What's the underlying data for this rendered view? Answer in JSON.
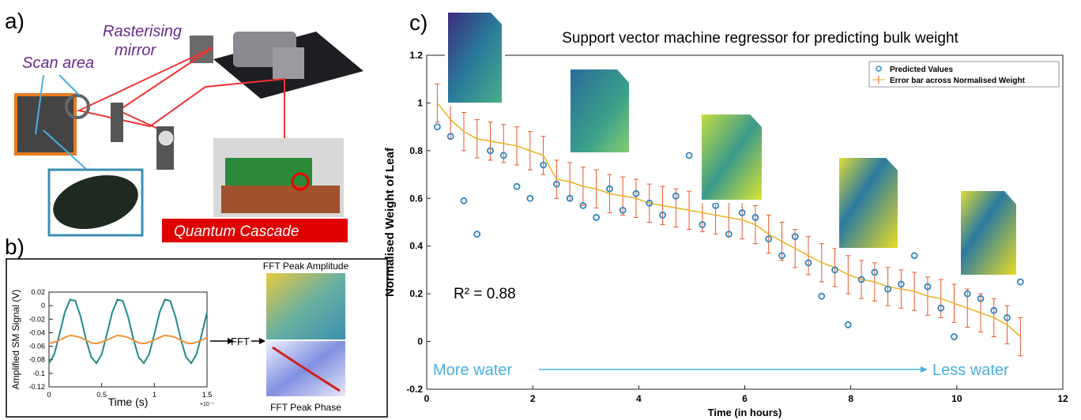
{
  "panel_a": {
    "label": "a)",
    "mirror_label": [
      "Rasterising",
      "mirror"
    ],
    "scan_label": "Scan area",
    "laser_label": "Quantum Cascade"
  },
  "panel_b": {
    "label": "b)",
    "fft_label": "FFT",
    "amplitude_label": "FFT Peak Amplitude",
    "phase_label": "FFT Peak Phase"
  },
  "panel_c": {
    "label": "c)"
  },
  "chart_data": [
    {
      "type": "line",
      "x_label": "Time (s)",
      "y_label": "Amplified SM Signal (V)",
      "x_exponent": "×10⁻⁷",
      "x": [
        0,
        0.05,
        0.1,
        0.15,
        0.2,
        0.25,
        0.3,
        0.35,
        0.4,
        0.45,
        0.5,
        0.55,
        0.6,
        0.65,
        0.7,
        0.75,
        0.8,
        0.85,
        0.9,
        0.95,
        1,
        1.05,
        1.1,
        1.15,
        1.2,
        1.25,
        1.3,
        1.35,
        1.4,
        1.45,
        1.5
      ],
      "series": [
        {
          "color": "#1f8a8a",
          "values": [
            -0.085,
            -0.072,
            -0.042,
            -0.01,
            0.009,
            0.007,
            -0.016,
            -0.049,
            -0.076,
            -0.085,
            -0.072,
            -0.042,
            -0.01,
            0.009,
            0.007,
            -0.016,
            -0.049,
            -0.076,
            -0.085,
            -0.072,
            -0.042,
            -0.01,
            0.009,
            0.007,
            -0.016,
            -0.049,
            -0.076,
            -0.085,
            -0.072,
            -0.042,
            -0.01
          ]
        },
        {
          "color": "#f0913a",
          "values": [
            -0.056,
            -0.054,
            -0.051,
            -0.047,
            -0.044,
            -0.045,
            -0.047,
            -0.051,
            -0.055,
            -0.056,
            -0.054,
            -0.051,
            -0.047,
            -0.044,
            -0.045,
            -0.047,
            -0.051,
            -0.055,
            -0.056,
            -0.054,
            -0.051,
            -0.047,
            -0.044,
            -0.045,
            -0.047,
            -0.051,
            -0.055,
            -0.056,
            -0.054,
            -0.051,
            -0.047
          ]
        }
      ],
      "xlim": [
        0,
        1.5
      ],
      "ylim": [
        -0.12,
        0.02
      ],
      "xticks": [
        0,
        0.5,
        1,
        1.5
      ],
      "yticks": [
        -0.12,
        -0.1,
        -0.08,
        -0.06,
        -0.04,
        -0.02,
        0,
        0.02
      ],
      "grid": false
    },
    {
      "type": "scatter",
      "title": "Support vector machine regressor for predicting bulk weight",
      "x_label": "Time (in hours)",
      "y_label": "Normalised Weight of Leaf",
      "annotation": "R² = 0.88",
      "arrow_labels": [
        "More water",
        "Less water"
      ],
      "x": [
        0.2,
        0.45,
        0.7,
        0.95,
        1.2,
        1.45,
        1.7,
        1.95,
        2.2,
        2.45,
        2.7,
        2.95,
        3.2,
        3.45,
        3.7,
        3.95,
        4.2,
        4.45,
        4.7,
        4.95,
        5.2,
        5.45,
        5.7,
        5.95,
        6.2,
        6.45,
        6.7,
        6.95,
        7.2,
        7.45,
        7.7,
        7.95,
        8.2,
        8.45,
        8.7,
        8.95,
        9.2,
        9.45,
        9.7,
        9.95,
        10.2,
        10.45,
        10.7,
        10.95,
        11.2
      ],
      "series": [
        {
          "name": "Predicted Values",
          "color": "#2e86c1",
          "values": [
            0.9,
            0.86,
            0.59,
            0.45,
            0.8,
            0.78,
            0.65,
            0.6,
            0.74,
            0.66,
            0.6,
            0.57,
            0.52,
            0.64,
            0.55,
            0.62,
            0.58,
            0.53,
            0.61,
            0.78,
            0.49,
            0.57,
            0.45,
            0.54,
            0.52,
            0.43,
            0.36,
            0.44,
            0.33,
            0.19,
            0.3,
            0.07,
            0.26,
            0.29,
            0.22,
            0.24,
            0.36,
            0.23,
            0.14,
            0.02,
            0.2,
            0.18,
            0.13,
            0.1,
            0.25
          ]
        },
        {
          "name": "Error bar across Normalised Weight",
          "color": "#e8562a",
          "line_color": "#edb120",
          "error": 0.08,
          "values": [
            1.0,
            0.93,
            0.88,
            0.85,
            0.84,
            0.83,
            0.82,
            0.8,
            0.78,
            0.68,
            0.67,
            0.65,
            0.64,
            0.62,
            0.61,
            0.6,
            0.58,
            0.57,
            0.56,
            0.55,
            0.54,
            0.53,
            0.52,
            0.51,
            0.49,
            0.45,
            0.42,
            0.39,
            0.36,
            0.33,
            0.31,
            0.28,
            0.26,
            0.25,
            0.23,
            0.22,
            0.21,
            0.19,
            0.18,
            0.16,
            0.14,
            0.12,
            0.1,
            0.07,
            0.02
          ]
        }
      ],
      "xlim": [
        0,
        12
      ],
      "ylim": [
        -0.2,
        1.2
      ],
      "xticks": [
        0,
        2,
        4,
        6,
        8,
        10,
        12
      ],
      "yticks": [
        -0.2,
        0,
        0.2,
        0.4,
        0.6,
        0.8,
        1,
        1.2
      ],
      "grid": false,
      "legend": "upper right"
    }
  ]
}
